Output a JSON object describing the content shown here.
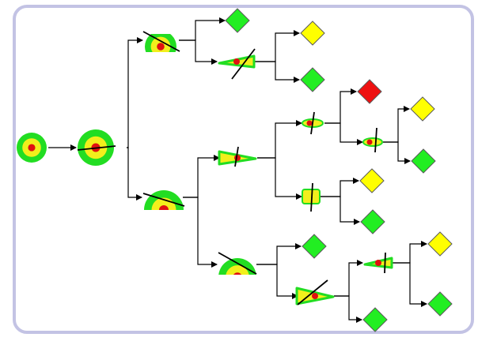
{
  "colors": {
    "frame": "#c3c3e4",
    "edge": "#000000",
    "cut_line": "#000000",
    "blob_outer": "#22dd22",
    "blob_middle": "#f2ef1c",
    "blob_core": "#e01010",
    "leaf_green": "#22ee22",
    "leaf_yellow": "#ffff00",
    "leaf_red": "#ee1111",
    "leaf_stroke": "#5a5a5a"
  },
  "diagram": {
    "kind": "tree",
    "node_shapes": [
      "target-blob",
      "diamond-leaf"
    ],
    "nodes": [
      {
        "id": "n0",
        "type": "blob",
        "form": "full",
        "cut": false
      },
      {
        "id": "n1",
        "type": "blob",
        "form": "full",
        "cut": true
      },
      {
        "id": "n2",
        "type": "blob",
        "form": "cap",
        "cut": true
      },
      {
        "id": "n3",
        "type": "blob",
        "form": "half",
        "cut": true
      },
      {
        "id": "L1",
        "type": "leaf",
        "color": "green"
      },
      {
        "id": "n4",
        "type": "blob",
        "form": "wedge",
        "cut": true
      },
      {
        "id": "L2",
        "type": "leaf",
        "color": "yellow"
      },
      {
        "id": "L3",
        "type": "leaf",
        "color": "green"
      },
      {
        "id": "n5",
        "type": "blob",
        "form": "wedge",
        "cut": true
      },
      {
        "id": "n6",
        "type": "blob",
        "form": "half",
        "cut": true
      },
      {
        "id": "n7",
        "type": "blob",
        "form": "small",
        "cut": true
      },
      {
        "id": "n8",
        "type": "blob",
        "form": "small",
        "cut": true
      },
      {
        "id": "L4",
        "type": "leaf",
        "color": "red"
      },
      {
        "id": "n9",
        "type": "blob",
        "form": "small",
        "cut": true
      },
      {
        "id": "L5",
        "type": "leaf",
        "color": "yellow"
      },
      {
        "id": "L6",
        "type": "leaf",
        "color": "green"
      },
      {
        "id": "L7",
        "type": "leaf",
        "color": "yellow"
      },
      {
        "id": "L8",
        "type": "leaf",
        "color": "green"
      },
      {
        "id": "L9",
        "type": "leaf",
        "color": "green"
      },
      {
        "id": "n10",
        "type": "blob",
        "form": "wedge",
        "cut": true
      },
      {
        "id": "n11",
        "type": "blob",
        "form": "wedge",
        "cut": true
      },
      {
        "id": "L10",
        "type": "leaf",
        "color": "green"
      },
      {
        "id": "L11",
        "type": "leaf",
        "color": "yellow"
      },
      {
        "id": "L12",
        "type": "leaf",
        "color": "green"
      }
    ],
    "edges": [
      [
        "n0",
        "n1"
      ],
      [
        "n1",
        "n2"
      ],
      [
        "n1",
        "n3"
      ],
      [
        "n2",
        "L1"
      ],
      [
        "n2",
        "n4"
      ],
      [
        "n4",
        "L2"
      ],
      [
        "n4",
        "L3"
      ],
      [
        "n3",
        "n5"
      ],
      [
        "n3",
        "n6"
      ],
      [
        "n5",
        "n7"
      ],
      [
        "n5",
        "n8"
      ],
      [
        "n7",
        "L4"
      ],
      [
        "n7",
        "n9"
      ],
      [
        "n9",
        "L5"
      ],
      [
        "n9",
        "L6"
      ],
      [
        "n8",
        "L7"
      ],
      [
        "n8",
        "L8"
      ],
      [
        "n6",
        "L9"
      ],
      [
        "n6",
        "n10"
      ],
      [
        "n10",
        "n11"
      ],
      [
        "n10",
        "L10"
      ],
      [
        "n11",
        "L11"
      ],
      [
        "n11",
        "L12"
      ]
    ]
  }
}
